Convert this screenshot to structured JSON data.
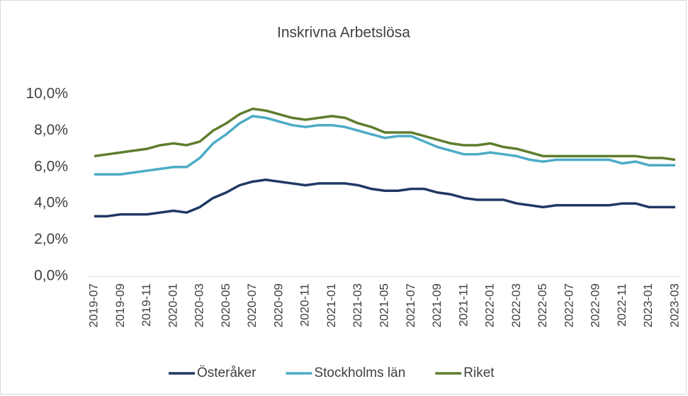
{
  "chart_data": {
    "type": "line",
    "title": "Inskrivna Arbetslösa",
    "categories": [
      "2019-07",
      null,
      "2019-09",
      null,
      "2019-11",
      null,
      "2020-01",
      null,
      "2020-03",
      null,
      "2020-05",
      null,
      "2020-07",
      null,
      "2020-09",
      null,
      "2020-11",
      null,
      "2021-01",
      null,
      "2021-03",
      null,
      "2021-05",
      null,
      "2021-07",
      null,
      "2021-09",
      null,
      "2021-11",
      null,
      "2022-01",
      null,
      "2022-03",
      null,
      "2022-05",
      null,
      "2022-07",
      null,
      "2022-09",
      null,
      "2022-11",
      null,
      "2023-01",
      null,
      "2023-03"
    ],
    "series": [
      {
        "name": "Österåker",
        "color": "#203864",
        "values": [
          3.3,
          3.3,
          3.4,
          3.4,
          3.4,
          3.5,
          3.6,
          3.5,
          3.8,
          4.3,
          4.6,
          5.0,
          5.2,
          5.3,
          5.2,
          5.1,
          5.0,
          5.1,
          5.1,
          5.1,
          5.0,
          4.8,
          4.7,
          4.7,
          4.8,
          4.8,
          4.6,
          4.5,
          4.3,
          4.2,
          4.2,
          4.2,
          4.0,
          3.9,
          3.8,
          3.9,
          3.9,
          3.9,
          3.9,
          3.9,
          4.0,
          4.0,
          3.8,
          3.8,
          3.8
        ]
      },
      {
        "name": "Stockholms län",
        "color": "#4bacc6",
        "values": [
          5.6,
          5.6,
          5.6,
          5.7,
          5.8,
          5.9,
          6.0,
          6.0,
          6.5,
          7.3,
          7.8,
          8.4,
          8.8,
          8.7,
          8.5,
          8.3,
          8.2,
          8.3,
          8.3,
          8.2,
          8.0,
          7.8,
          7.6,
          7.7,
          7.7,
          7.4,
          7.1,
          6.9,
          6.7,
          6.7,
          6.8,
          6.7,
          6.6,
          6.4,
          6.3,
          6.4,
          6.4,
          6.4,
          6.4,
          6.4,
          6.2,
          6.3,
          6.1,
          6.1,
          6.1
        ]
      },
      {
        "name": "Riket",
        "color": "#5e7d2d",
        "values": [
          6.6,
          6.7,
          6.8,
          6.9,
          7.0,
          7.2,
          7.3,
          7.2,
          7.4,
          8.0,
          8.4,
          8.9,
          9.2,
          9.1,
          8.9,
          8.7,
          8.6,
          8.7,
          8.8,
          8.7,
          8.4,
          8.2,
          7.9,
          7.9,
          7.9,
          7.7,
          7.5,
          7.3,
          7.2,
          7.2,
          7.3,
          7.1,
          7.0,
          6.8,
          6.6,
          6.6,
          6.6,
          6.6,
          6.6,
          6.6,
          6.6,
          6.6,
          6.5,
          6.5,
          6.4
        ]
      }
    ],
    "ylim": [
      0,
      10
    ],
    "yticks": [
      {
        "value": 0,
        "label": "0,0%"
      },
      {
        "value": 2,
        "label": "2,0%"
      },
      {
        "value": 4,
        "label": "4,0%"
      },
      {
        "value": 6,
        "label": "6,0%"
      },
      {
        "value": 8,
        "label": "8,0%"
      },
      {
        "value": 10,
        "label": "10,0%"
      }
    ],
    "grid": false,
    "legend": "bottom"
  }
}
